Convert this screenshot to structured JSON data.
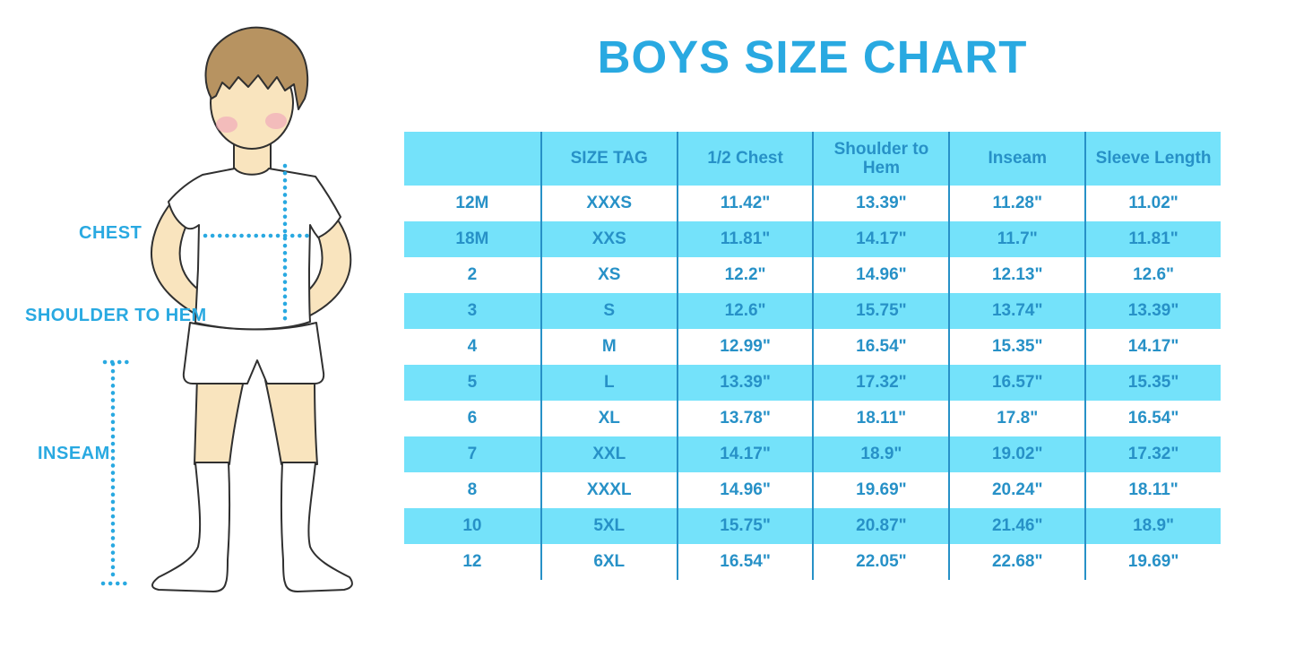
{
  "title": "BOYS SIZE CHART",
  "figure": {
    "illustration": "boy-front-standing-hands-on-hips",
    "labels": {
      "chest": "CHEST",
      "shoulder_to_hem": "SHOULDER TO HEM",
      "inseam": "INSEAM"
    }
  },
  "colors": {
    "accent_blue": "#29A9E1",
    "table_ink_blue": "#2791C7",
    "row_band_cyan": "#74E2FA",
    "skin": "#F9E4BE",
    "hair_brown": "#B79361",
    "blush_pink": "#F0A6BA",
    "outline": "#303030"
  },
  "chart_data": {
    "type": "table",
    "title": "BOYS SIZE CHART",
    "columns": [
      "",
      "SIZE TAG",
      "1/2 Chest",
      "Shoulder to Hem",
      "Inseam",
      "Sleeve Length"
    ],
    "rows": [
      [
        "12M",
        "XXXS",
        "11.42\"",
        "13.39\"",
        "11.28\"",
        "11.02\""
      ],
      [
        "18M",
        "XXS",
        "11.81\"",
        "14.17\"",
        "11.7\"",
        "11.81\""
      ],
      [
        "2",
        "XS",
        "12.2\"",
        "14.96\"",
        "12.13\"",
        "12.6\""
      ],
      [
        "3",
        "S",
        "12.6\"",
        "15.75\"",
        "13.74\"",
        "13.39\""
      ],
      [
        "4",
        "M",
        "12.99\"",
        "16.54\"",
        "15.35\"",
        "14.17\""
      ],
      [
        "5",
        "L",
        "13.39\"",
        "17.32\"",
        "16.57\"",
        "15.35\""
      ],
      [
        "6",
        "XL",
        "13.78\"",
        "18.11\"",
        "17.8\"",
        "16.54\""
      ],
      [
        "7",
        "XXL",
        "14.17\"",
        "18.9\"",
        "19.02\"",
        "17.32\""
      ],
      [
        "8",
        "XXXL",
        "14.96\"",
        "19.69\"",
        "20.24\"",
        "18.11\""
      ],
      [
        "10",
        "5XL",
        "15.75\"",
        "20.87\"",
        "21.46\"",
        "18.9\""
      ],
      [
        "12",
        "6XL",
        "16.54\"",
        "22.05\"",
        "22.68\"",
        "19.69\""
      ]
    ],
    "row_striping": "white / cyan alternating, header cyan",
    "grid": "vertical blue column separators only, no horizontal lines"
  }
}
